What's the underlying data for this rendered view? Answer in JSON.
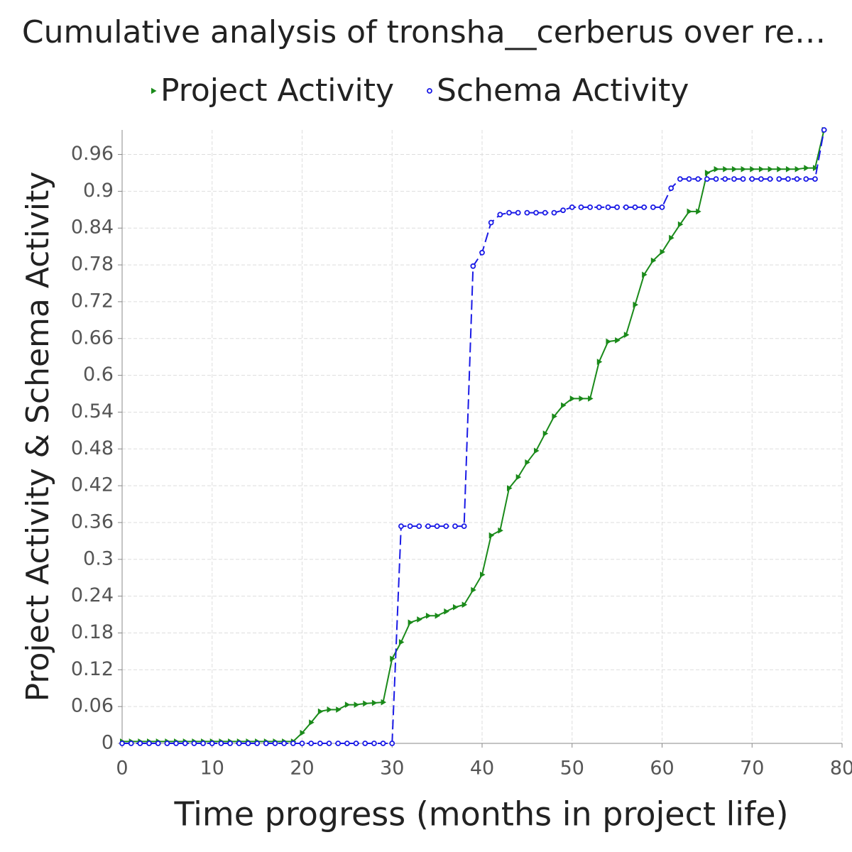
{
  "chart_data": {
    "type": "line",
    "title": "Cumulative analysis of tronsha__cerberus over re…",
    "x_label": "Time progress (months in project life)",
    "y_label": "Project Activity & Schema Activity",
    "x": [
      0,
      1,
      2,
      3,
      4,
      5,
      6,
      7,
      8,
      9,
      10,
      11,
      12,
      13,
      14,
      15,
      16,
      17,
      18,
      19,
      20,
      21,
      22,
      23,
      24,
      25,
      26,
      27,
      28,
      29,
      30,
      31,
      32,
      33,
      34,
      35,
      36,
      37,
      38,
      39,
      40,
      41,
      42,
      43,
      44,
      45,
      46,
      47,
      48,
      49,
      50,
      51,
      52,
      53,
      54,
      55,
      56,
      57,
      58,
      59,
      60,
      61,
      62,
      63,
      64,
      65,
      66,
      67,
      68,
      69,
      70,
      71,
      72,
      73,
      74,
      75,
      76,
      77,
      78
    ],
    "series": [
      {
        "name": "Project Activity",
        "color": "#1a8a1a",
        "dashed": false,
        "marker": "triangle",
        "values": [
          0.003,
          0.003,
          0.003,
          0.003,
          0.003,
          0.003,
          0.003,
          0.003,
          0.003,
          0.003,
          0.003,
          0.003,
          0.003,
          0.003,
          0.003,
          0.003,
          0.003,
          0.003,
          0.003,
          0.003,
          0.017,
          0.034,
          0.052,
          0.055,
          0.055,
          0.063,
          0.063,
          0.065,
          0.066,
          0.067,
          0.138,
          0.165,
          0.197,
          0.202,
          0.208,
          0.208,
          0.215,
          0.222,
          0.226,
          0.25,
          0.275,
          0.339,
          0.347,
          0.416,
          0.434,
          0.458,
          0.477,
          0.505,
          0.533,
          0.551,
          0.562,
          0.562,
          0.562,
          0.622,
          0.655,
          0.657,
          0.666,
          0.715,
          0.764,
          0.787,
          0.801,
          0.824,
          0.846,
          0.867,
          0.867,
          0.93,
          0.936,
          0.936,
          0.936,
          0.936,
          0.936,
          0.936,
          0.936,
          0.936,
          0.936,
          0.936,
          0.938,
          0.938,
          1.0
        ]
      },
      {
        "name": "Schema Activity",
        "color": "#1a1ae6",
        "dashed": true,
        "marker": "circle",
        "values": [
          0,
          0,
          0,
          0,
          0,
          0,
          0,
          0,
          0,
          0,
          0,
          0,
          0,
          0,
          0,
          0,
          0,
          0,
          0,
          0,
          0,
          0,
          0,
          0,
          0,
          0,
          0,
          0,
          0,
          0,
          0,
          0.354,
          0.354,
          0.354,
          0.354,
          0.354,
          0.354,
          0.354,
          0.354,
          0.778,
          0.8,
          0.849,
          0.862,
          0.865,
          0.865,
          0.865,
          0.865,
          0.865,
          0.865,
          0.869,
          0.874,
          0.874,
          0.874,
          0.874,
          0.874,
          0.874,
          0.874,
          0.874,
          0.874,
          0.874,
          0.874,
          0.905,
          0.92,
          0.92,
          0.92,
          0.92,
          0.92,
          0.92,
          0.92,
          0.92,
          0.92,
          0.92,
          0.92,
          0.92,
          0.92,
          0.92,
          0.92,
          0.92,
          1.0
        ]
      }
    ],
    "xlim": [
      0,
      80
    ],
    "xticks": [
      0,
      10,
      20,
      30,
      40,
      50,
      60,
      70,
      80
    ],
    "ylim": [
      0,
      1.0
    ],
    "yticks": [
      0,
      0.06,
      0.12,
      0.18,
      0.24,
      0.3,
      0.36,
      0.42,
      0.48,
      0.54,
      0.6,
      0.66,
      0.72,
      0.78,
      0.84,
      0.9,
      0.96
    ],
    "grid": true,
    "legend": "top"
  }
}
